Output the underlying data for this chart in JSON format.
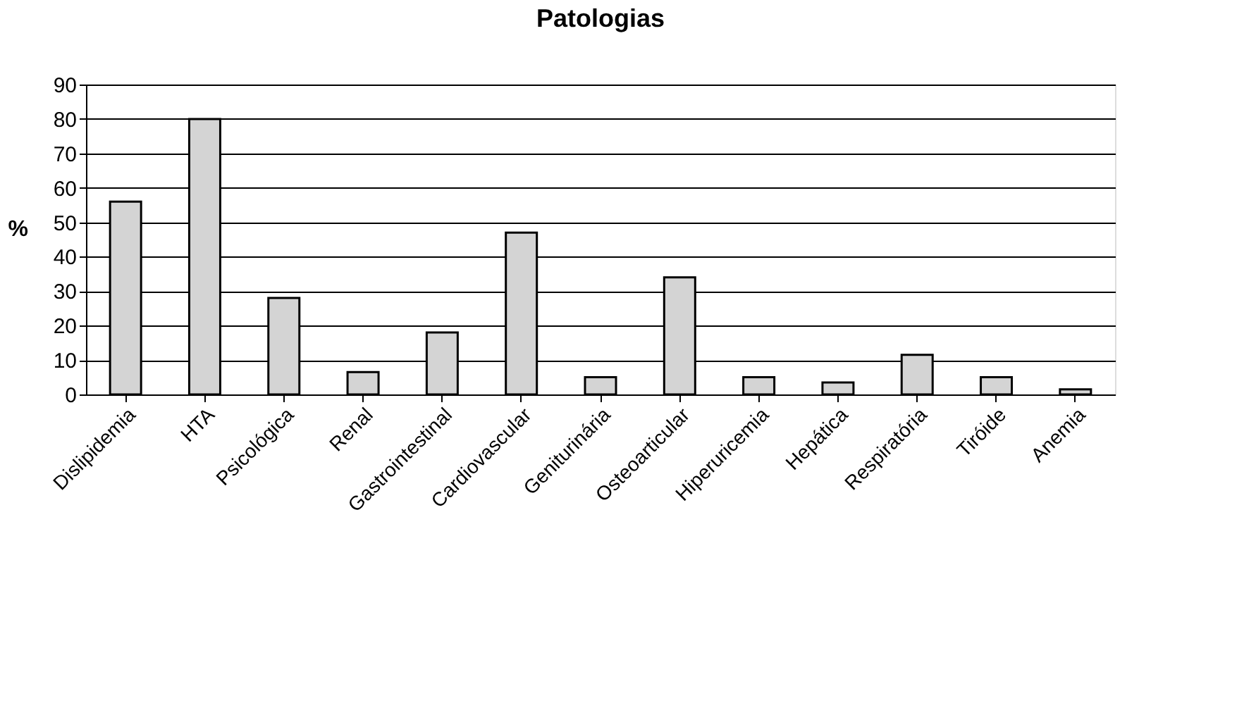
{
  "chart_data": {
    "type": "bar",
    "title": "Patologias",
    "ylabel": "%",
    "categories": [
      "Dislipidemia",
      "HTA",
      "Psicológica",
      "Renal",
      "Gastrointestinal",
      "Cardiovascular",
      "Geniturinária",
      "Osteoarticular",
      "Hiperuricemia",
      "Hepática",
      "Respiratória",
      "Tiróide",
      "Anemia"
    ],
    "values": [
      56,
      80,
      28,
      6.5,
      18,
      47,
      5,
      34,
      5,
      3.5,
      11.5,
      5,
      1.5
    ],
    "color": "#d4d4d4",
    "ylim": [
      0,
      90
    ],
    "yticks": [
      0,
      10,
      20,
      30,
      40,
      50,
      60,
      70,
      80,
      90
    ],
    "grid": "y"
  }
}
